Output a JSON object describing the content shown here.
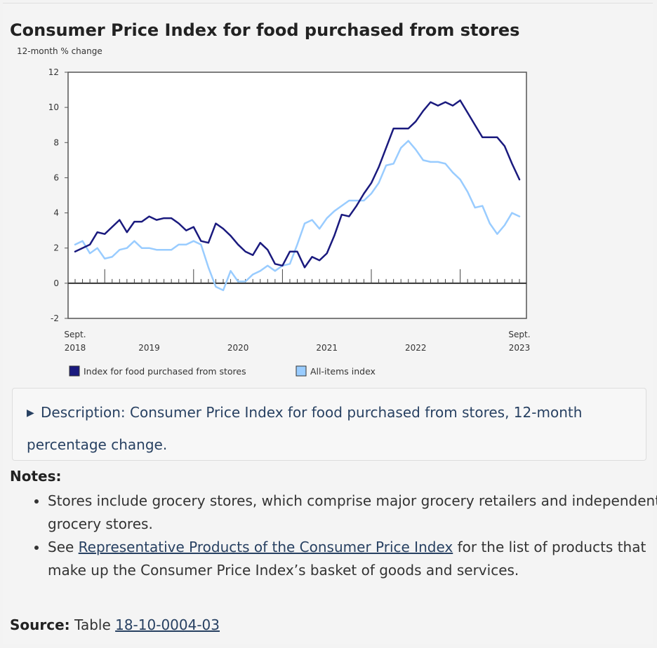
{
  "page": {
    "title": "Consumer Price Index for food purchased from stores",
    "details_label": "Description: Consumer Price Index for food purchased from stores, 12-month percentage change.",
    "notes_heading": "Notes:",
    "notes": [
      {
        "text": "Stores include grocery stores, which comprise major grocery retailers and independent grocery stores."
      },
      {
        "prefix": "See ",
        "link": "Representative Products of the Consumer Price Index",
        "suffix": " for the list of products that make up the Consumer Price Index’s basket of goods and services."
      }
    ],
    "source_label": "Source:",
    "source_prefix": "Table ",
    "source_link": "18-10-0004-03"
  },
  "chart_data": {
    "type": "line",
    "ylabel": "12-month % change",
    "ylim": [
      -2,
      12
    ],
    "yticks": [
      -2,
      0,
      2,
      4,
      6,
      8,
      10,
      12
    ],
    "x_start": "2018-09",
    "x_end": "2023-09",
    "x_tick_labels": [
      {
        "top": "Sept.",
        "bottom": "2018",
        "at": "2018-09"
      },
      {
        "top": "",
        "bottom": "2019",
        "at": "2019-07"
      },
      {
        "top": "",
        "bottom": "2020",
        "at": "2020-07"
      },
      {
        "top": "",
        "bottom": "2021",
        "at": "2021-07"
      },
      {
        "top": "",
        "bottom": "2022",
        "at": "2022-07"
      },
      {
        "top": "Sept.",
        "bottom": "2023",
        "at": "2023-09"
      }
    ],
    "legend_position": "bottom",
    "series": [
      {
        "name": "Index for food purchased from stores",
        "color": "#1a1a7e",
        "values": [
          1.8,
          2.0,
          2.2,
          2.9,
          2.8,
          3.2,
          3.6,
          2.9,
          3.5,
          3.5,
          3.8,
          3.6,
          3.7,
          3.7,
          3.4,
          3.0,
          3.2,
          2.4,
          2.3,
          3.4,
          3.1,
          2.7,
          2.2,
          1.8,
          1.6,
          2.3,
          1.9,
          1.1,
          1.0,
          1.8,
          1.8,
          0.9,
          1.5,
          1.3,
          1.7,
          2.7,
          3.9,
          3.8,
          4.4,
          5.1,
          5.7,
          6.6,
          7.7,
          8.8,
          8.8,
          8.8,
          9.2,
          9.8,
          10.3,
          10.1,
          10.3,
          10.1,
          10.4,
          9.7,
          9.0,
          8.3,
          8.3,
          8.3,
          7.8,
          6.8,
          5.9
        ]
      },
      {
        "name": "All-items index",
        "color": "#99ccff",
        "values": [
          2.2,
          2.4,
          1.7,
          2.0,
          1.4,
          1.5,
          1.9,
          2.0,
          2.4,
          2.0,
          2.0,
          1.9,
          1.9,
          1.9,
          2.2,
          2.2,
          2.4,
          2.2,
          0.9,
          -0.2,
          -0.4,
          0.7,
          0.1,
          0.1,
          0.5,
          0.7,
          1.0,
          0.7,
          1.0,
          1.1,
          2.2,
          3.4,
          3.6,
          3.1,
          3.7,
          4.1,
          4.4,
          4.7,
          4.7,
          4.7,
          5.1,
          5.7,
          6.7,
          6.8,
          7.7,
          8.1,
          7.6,
          7.0,
          6.9,
          6.9,
          6.8,
          6.3,
          5.9,
          5.2,
          4.3,
          4.4,
          3.4,
          2.8,
          3.3,
          4.0,
          3.8
        ]
      }
    ]
  }
}
